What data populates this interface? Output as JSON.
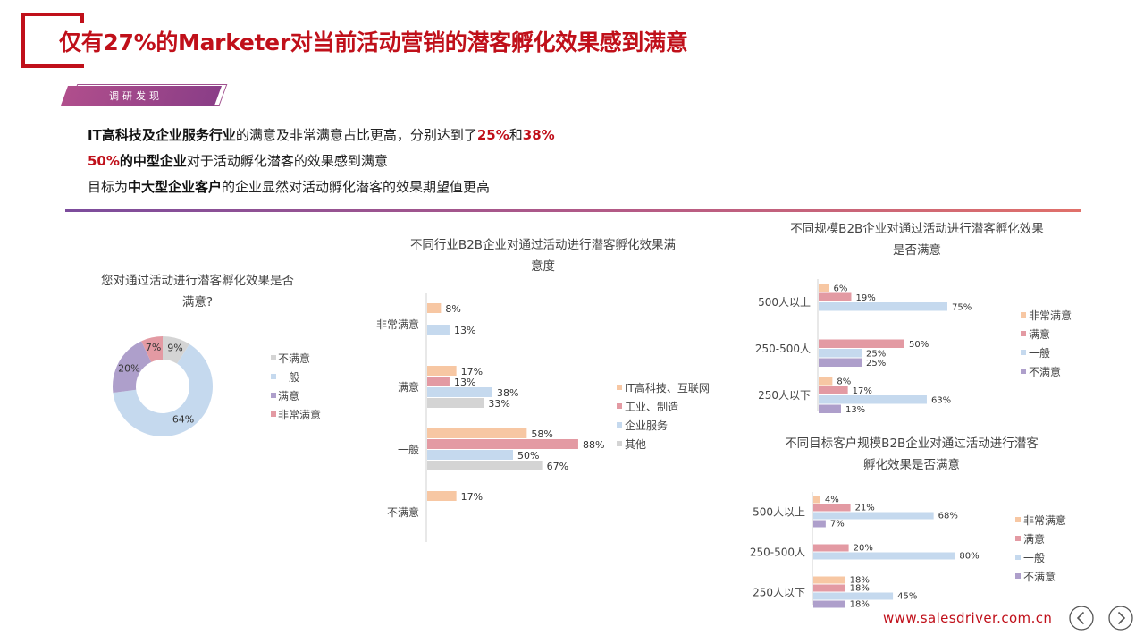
{
  "title": "仅有27%的Marketer对当前活动营销的潜客孵化效果感到满意",
  "section_tag": "调研发现",
  "findings": [
    [
      {
        "t": "IT高科技及企业服务行业",
        "s": "b"
      },
      {
        "t": "的满意及非常满意占比更高，分别达到了",
        "s": ""
      },
      {
        "t": "25%",
        "s": "red"
      },
      {
        "t": "和",
        "s": ""
      },
      {
        "t": "38%",
        "s": "red"
      }
    ],
    [
      {
        "t": "50%",
        "s": "red"
      },
      {
        "t": "的中型企业",
        "s": "b"
      },
      {
        "t": "对于活动孵化潜客的效果感到满意",
        "s": ""
      }
    ],
    [
      {
        "t": "目标为",
        "s": ""
      },
      {
        "t": "中大型企业客户",
        "s": "b"
      },
      {
        "t": "的企业显然对活动孵化潜客的效果期望值更高",
        "s": ""
      }
    ]
  ],
  "colors": {
    "accent": "#c0101a",
    "series_dissatisfied": "#d4d4d4",
    "series_normal": "#c5d9ee",
    "series_satisfied": "#ae9fcb",
    "series_very_satisfied": "#e39aa3"
  },
  "footer": {
    "url": "www.salesdriver.com.cn",
    "prev_icon": "chevron-left-icon",
    "next_icon": "chevron-right-icon"
  },
  "chart_data": [
    {
      "type": "pie",
      "variant": "donut",
      "title": "您对通过活动进行潜客孵化效果是否满意?",
      "title_lines": [
        "您对通过活动进行潜客孵化效果是否",
        "满意?"
      ],
      "slices": [
        {
          "label": "不满意",
          "value": 9,
          "color": "#d4d4d4"
        },
        {
          "label": "一般",
          "value": 64,
          "color": "#c5d9ee"
        },
        {
          "label": "满意",
          "value": 20,
          "color": "#ae9fcb"
        },
        {
          "label": "非常满意",
          "value": 7,
          "color": "#e39aa3"
        }
      ],
      "legend": [
        "不满意",
        "一般",
        "满意",
        "非常满意"
      ],
      "legend_position": "right"
    },
    {
      "type": "bar",
      "orientation": "horizontal",
      "title": "不同行业B2B企业对通过活动进行潜客孵化效果满意度",
      "title_lines": [
        "不同行业B2B企业对通过活动进行潜客孵化效果满",
        "意度"
      ],
      "categories": [
        "非常满意",
        "满意",
        "一般",
        "不满意"
      ],
      "series": [
        {
          "name": "IT高科技、互联网",
          "color": "#f7c7a3",
          "values": [
            8,
            17,
            58,
            17
          ]
        },
        {
          "name": "工业、制造",
          "color": "#e39aa3",
          "values": [
            null,
            13,
            88,
            null
          ]
        },
        {
          "name": "企业服务",
          "color": "#c5d9ee",
          "values": [
            13,
            38,
            50,
            null
          ]
        },
        {
          "name": "其他",
          "color": "#d4d4d4",
          "values": [
            null,
            33,
            67,
            null
          ]
        }
      ],
      "legend_position": "right",
      "value_suffix": "%"
    },
    {
      "type": "bar",
      "orientation": "horizontal",
      "title": "不同规模B2B企业对通过活动进行潜客孵化效果是否满意",
      "title_lines": [
        "不同规模B2B企业对通过活动进行潜客孵化效果",
        "是否满意"
      ],
      "categories": [
        "500人以上",
        "250-500人",
        "250人以下"
      ],
      "series": [
        {
          "name": "非常满意",
          "color": "#f7c7a3",
          "values": [
            6,
            null,
            8
          ]
        },
        {
          "name": "满意",
          "color": "#e39aa3",
          "values": [
            19,
            50,
            17
          ]
        },
        {
          "name": "一般",
          "color": "#c5d9ee",
          "values": [
            75,
            25,
            63
          ]
        },
        {
          "name": "不满意",
          "color": "#ae9fcb",
          "values": [
            null,
            25,
            13
          ]
        }
      ],
      "legend_position": "right",
      "value_suffix": "%"
    },
    {
      "type": "bar",
      "orientation": "horizontal",
      "title": "不同目标客户规模B2B企业对通过活动进行潜客孵化效果是否满意",
      "title_lines": [
        "不同目标客户规模B2B企业对通过活动进行潜客",
        "孵化效果是否满意"
      ],
      "categories": [
        "500人以上",
        "250-500人",
        "250人以下"
      ],
      "series": [
        {
          "name": "非常满意",
          "color": "#f7c7a3",
          "values": [
            4,
            null,
            18
          ]
        },
        {
          "name": "满意",
          "color": "#e39aa3",
          "values": [
            21,
            20,
            18
          ]
        },
        {
          "name": "一般",
          "color": "#c5d9ee",
          "values": [
            68,
            80,
            45
          ]
        },
        {
          "name": "不满意",
          "color": "#ae9fcb",
          "values": [
            7,
            null,
            18
          ]
        }
      ],
      "legend_position": "right",
      "value_suffix": "%"
    }
  ]
}
